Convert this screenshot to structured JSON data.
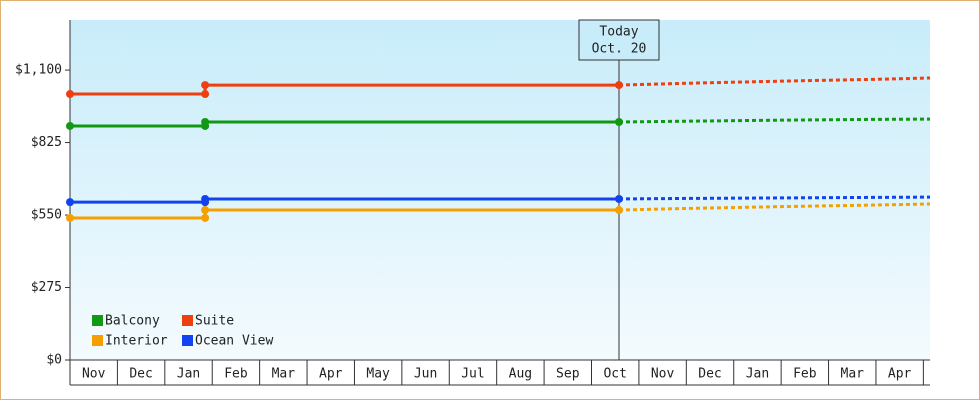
{
  "chart_data": {
    "type": "line",
    "ylim": [
      0,
      1290
    ],
    "yticks": [
      {
        "value": 0,
        "label": "$0"
      },
      {
        "value": 275,
        "label": "$275"
      },
      {
        "value": 550,
        "label": "$550"
      },
      {
        "value": 825,
        "label": "$825"
      },
      {
        "value": 1100,
        "label": "$1,100"
      }
    ],
    "xlim": [
      0,
      18.14
    ],
    "xticks": [
      {
        "value": 0.5,
        "label": "Nov"
      },
      {
        "value": 1.5,
        "label": "Dec"
      },
      {
        "value": 2.5,
        "label": "Jan"
      },
      {
        "value": 3.5,
        "label": "Feb"
      },
      {
        "value": 4.5,
        "label": "Mar"
      },
      {
        "value": 5.5,
        "label": "Apr"
      },
      {
        "value": 6.5,
        "label": "May"
      },
      {
        "value": 7.5,
        "label": "Jun"
      },
      {
        "value": 8.5,
        "label": "Jul"
      },
      {
        "value": 9.5,
        "label": "Aug"
      },
      {
        "value": 10.5,
        "label": "Sep"
      },
      {
        "value": 11.5,
        "label": "Oct"
      },
      {
        "value": 12.5,
        "label": "Nov"
      },
      {
        "value": 13.5,
        "label": "Dec"
      },
      {
        "value": 14.5,
        "label": "Jan"
      },
      {
        "value": 15.5,
        "label": "Feb"
      },
      {
        "value": 16.5,
        "label": "Mar"
      },
      {
        "value": 17.5,
        "label": "Apr"
      }
    ],
    "today": {
      "x": 11.58,
      "label": [
        "Today",
        "Oct. 20"
      ]
    },
    "x": [
      0,
      2.85,
      2.85,
      11.58
    ],
    "forecast_x": [
      11.58,
      13.0,
      15.0,
      17.0,
      18.14
    ],
    "legend": "lower left",
    "series": [
      {
        "name": "Balcony",
        "color": "#119911",
        "values": [
          888,
          888,
          903,
          903
        ],
        "forecast": [
          903,
          906,
          910,
          913,
          914
        ]
      },
      {
        "name": "Suite",
        "color": "#ee3f11",
        "values": [
          1009,
          1009,
          1043,
          1043
        ],
        "forecast": [
          1043,
          1050,
          1058,
          1065,
          1070
        ]
      },
      {
        "name": "Interior",
        "color": "#f5a000",
        "values": [
          539,
          539,
          569,
          569
        ],
        "forecast": [
          569,
          575,
          582,
          588,
          592
        ]
      },
      {
        "name": "Ocean View",
        "color": "#1144ee",
        "values": [
          599,
          599,
          611,
          611
        ],
        "forecast": [
          611,
          613,
          615,
          617,
          618
        ]
      }
    ]
  }
}
